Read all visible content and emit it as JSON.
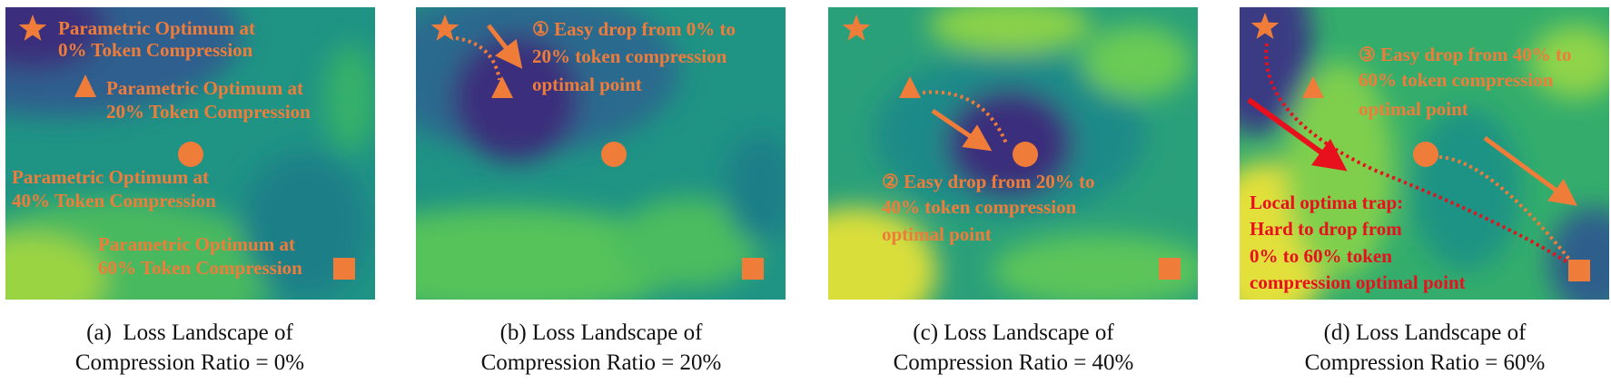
{
  "colors": {
    "marker": "#f07c3a",
    "trap": "#e8101c"
  },
  "panels": [
    {
      "id": "a",
      "labels": {
        "opt0": [
          "Parametric Optimum at",
          "0% Token Compression"
        ],
        "opt20": [
          "Parametric Optimum at",
          "20% Token Compression"
        ],
        "opt40": [
          "Parametric Optimum at",
          "40% Token Compression"
        ],
        "opt60": [
          "Parametric Optimum at",
          "60% Token Compression"
        ]
      },
      "caption": [
        "(a)  Loss Landscape of",
        "Compression Ratio = 0%"
      ]
    },
    {
      "id": "b",
      "annotation": [
        "① Easy drop from 0% to",
        "20% token compression",
        "optimal point"
      ],
      "caption": [
        "(b) Loss Landscape of",
        "Compression Ratio = 20%"
      ]
    },
    {
      "id": "c",
      "annotation": [
        "② Easy drop from 20% to",
        "40% token compression",
        "optimal point"
      ],
      "caption": [
        "(c) Loss Landscape of",
        "Compression Ratio = 40%"
      ]
    },
    {
      "id": "d",
      "annotation": [
        "③ Easy drop from 40% to",
        "60% token compression",
        "optimal point"
      ],
      "trap": [
        "Local optima trap:",
        "Hard to drop from",
        "0% to 60% token",
        "compression optimal point"
      ],
      "caption": [
        "(d) Loss Landscape of",
        "Compression Ratio = 60%"
      ]
    }
  ],
  "markers": {
    "star": "star-icon",
    "triangle": "triangle-icon",
    "circle": "circle-icon",
    "square": "square-icon"
  }
}
